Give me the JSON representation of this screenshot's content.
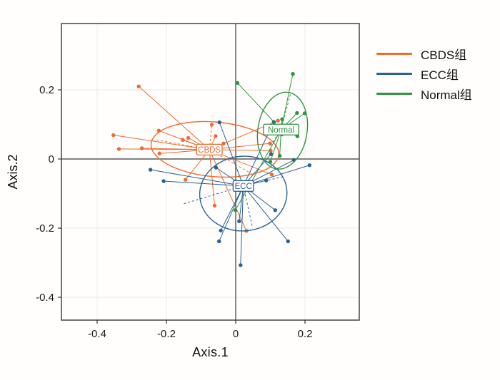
{
  "figure": {
    "background": "#fffefc",
    "kind": "PCoA ordination scatter plot with group centroids, spider segments and confidence ellipses"
  },
  "chart_data": {
    "type": "scatter",
    "title": "",
    "xlabel": "Axis.1",
    "ylabel": "Axis.2",
    "xlim": [
      -0.503,
      0.357
    ],
    "ylim": [
      -0.466,
      0.392
    ],
    "x_ticks": [
      -0.4,
      -0.2,
      0,
      0.2
    ],
    "x_tick_labels": [
      "-0.4",
      "-0.2",
      "0",
      "0.2"
    ],
    "y_ticks": [
      0.2,
      0,
      -0.2,
      -0.4
    ],
    "y_tick_labels": [
      "0.2",
      "0",
      "-0.2",
      "-0.4"
    ],
    "grid": true,
    "zero_lines": true,
    "legend_position": "right",
    "colors": {
      "grid": "#efefef",
      "zero_line": "#595959",
      "panel_border": "#4f4f4f",
      "tick_text": "#1a1a1a"
    },
    "series": [
      {
        "name": "CBDS组",
        "label": "CBDS",
        "color": "#EC6C31",
        "centroid": [
          -0.076,
          0.027
        ],
        "ellipse": {
          "cx": -0.06,
          "cy": 0.028,
          "rx": 0.185,
          "ry": 0.079,
          "rot": 5
        },
        "points": [
          [
            -0.28,
            0.21
          ],
          [
            -0.353,
            0.069
          ],
          [
            -0.337,
            0.029
          ],
          [
            -0.271,
            0.031
          ],
          [
            -0.222,
            0.082
          ],
          [
            -0.22,
            0.016
          ],
          [
            -0.153,
            0.055
          ],
          [
            -0.137,
            0.061
          ],
          [
            -0.058,
            0.066
          ],
          [
            -0.035,
            0.045
          ],
          [
            -0.145,
            -0.06
          ],
          [
            -0.061,
            -0.135
          ],
          [
            0.104,
            -0.045
          ],
          [
            0.031,
            -0.208
          ],
          [
            0.122,
            0.111
          ],
          [
            0.099,
            0.045
          ],
          [
            0.101,
            0.024
          ]
        ],
        "dashed_points": [
          [
            -0.069,
            0.099
          ]
        ],
        "dashed_rays": [
          [
            -0.233,
            0.056
          ],
          [
            0.045,
            -0.042
          ]
        ]
      },
      {
        "name": "ECC组",
        "label": "ECC",
        "color": "#2B6193",
        "centroid": [
          0.022,
          -0.078
        ],
        "ellipse": {
          "cx": 0.022,
          "cy": -0.1,
          "rx": 0.126,
          "ry": 0.108,
          "rot": -4
        },
        "points": [
          [
            -0.246,
            -0.031
          ],
          [
            -0.208,
            -0.064
          ],
          [
            -0.057,
            -0.025
          ],
          [
            -0.047,
            0.106
          ],
          [
            0.088,
            -0.062
          ],
          [
            0.114,
            -0.148
          ],
          [
            0.151,
            -0.238
          ],
          [
            0.01,
            -0.18
          ],
          [
            -0.043,
            -0.207
          ],
          [
            -0.048,
            -0.238
          ],
          [
            0.014,
            -0.307
          ],
          [
            0.168,
            -0.003
          ],
          [
            0.213,
            -0.018
          ],
          [
            0.11,
            0.107
          ],
          [
            0.102,
            0.014
          ]
        ],
        "dashed_points": [],
        "dashed_rays": [
          [
            -0.152,
            -0.13
          ],
          [
            0.142,
            -0.05
          ],
          [
            0.048,
            -0.196
          ]
        ]
      },
      {
        "name": "Normal组",
        "label": "Normal",
        "color": "#2E9441",
        "centroid": [
          0.131,
          0.085
        ],
        "ellipse": {
          "cx": 0.135,
          "cy": 0.082,
          "rx": 0.071,
          "ry": 0.112,
          "rot": 9
        },
        "points": [
          [
            0.165,
            0.246
          ],
          [
            0.005,
            0.22
          ],
          [
            0.177,
            0.133
          ],
          [
            0.199,
            0.132
          ],
          [
            0.178,
            0.066
          ],
          [
            0.134,
            0.115
          ],
          [
            0.133,
            0.071
          ],
          [
            0.127,
            0.009
          ],
          [
            0.1,
            -0.008
          ],
          [
            -0.001,
            -0.148
          ]
        ],
        "dashed_points": [],
        "dashed_rays": [
          [
            0.158,
            0.188
          ],
          [
            0.098,
            0.035
          ]
        ]
      }
    ]
  }
}
